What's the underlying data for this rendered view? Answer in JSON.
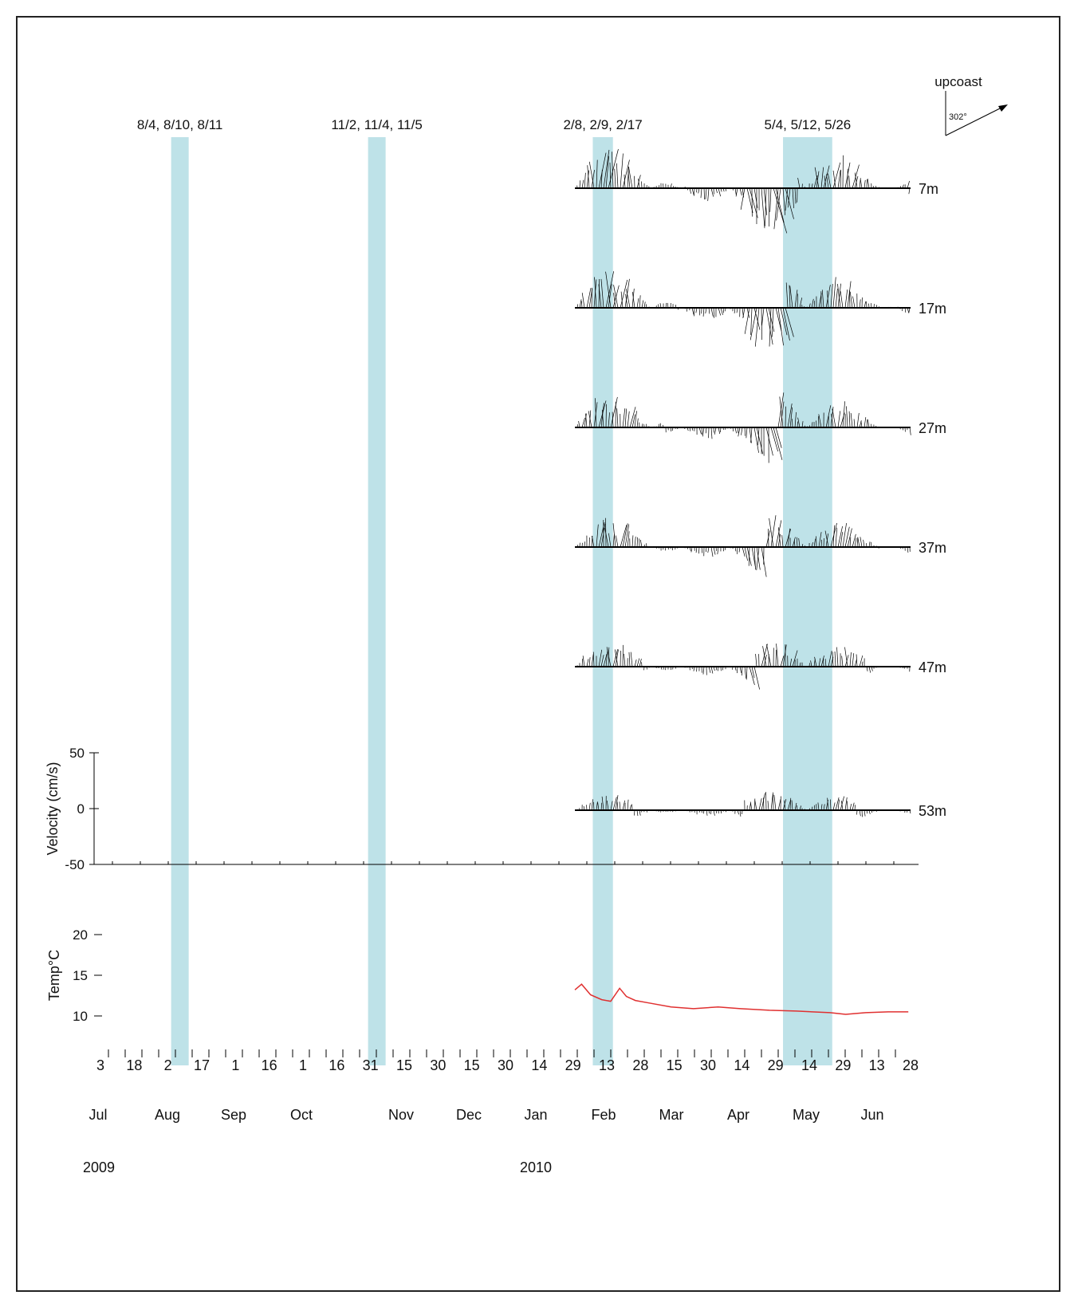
{
  "chart_data": {
    "type": "line",
    "orientation_legend": {
      "label": "upcoast",
      "angle_label": "302°"
    },
    "highlight_periods": [
      {
        "label": "8/4, 8/10, 8/11",
        "start": "2009-08-04",
        "end": "2009-08-11"
      },
      {
        "label": "11/2, 11/4, 11/5",
        "start": "2009-11-02",
        "end": "2009-11-05"
      },
      {
        "label": "2/8, 2/9, 2/17",
        "start": "2010-02-08",
        "end": "2010-02-17"
      },
      {
        "label": "5/4, 5/12, 5/26",
        "start": "2010-05-04",
        "end": "2010-05-26"
      }
    ],
    "depths": [
      "7m",
      "17m",
      "27m",
      "37m",
      "47m",
      "53m"
    ],
    "velocity_axis": {
      "ylabel": "Velocity (cm/s)",
      "ylim": [
        -50,
        50
      ],
      "ticks": [
        "50",
        "0",
        "-50"
      ]
    },
    "temperature_axis": {
      "ylabel": "Temp°C",
      "ylim": [
        10,
        20
      ],
      "ticks": [
        "20",
        "15",
        "10"
      ]
    },
    "temperature_series": {
      "name": "",
      "x": [
        "2010-01-31",
        "2010-02-03",
        "2010-02-07",
        "2010-02-12",
        "2010-02-16",
        "2010-02-20",
        "2010-02-23",
        "2010-02-27",
        "2010-03-05",
        "2010-03-15",
        "2010-03-25",
        "2010-04-05",
        "2010-04-15",
        "2010-04-28",
        "2010-05-10",
        "2010-05-25",
        "2010-06-01",
        "2010-06-10",
        "2010-06-20",
        "2010-06-29"
      ],
      "y": [
        13.2,
        13.9,
        12.6,
        12.0,
        11.8,
        13.4,
        12.4,
        11.9,
        11.6,
        11.1,
        10.9,
        11.1,
        10.9,
        10.7,
        10.6,
        10.4,
        10.2,
        10.4,
        10.5,
        10.5
      ]
    },
    "x_day_ticks": [
      "3",
      "18",
      "2",
      "17",
      "1",
      "16",
      "1",
      "16",
      "31",
      "15",
      "30",
      "15",
      "30",
      "14",
      "29",
      "13",
      "28",
      "15",
      "30",
      "14",
      "29",
      "14",
      "29",
      "13",
      "28"
    ],
    "x_month_labels": [
      "Jul",
      "Aug",
      "Sep",
      "Oct",
      "Nov",
      "Dec",
      "Jan",
      "Feb",
      "Mar",
      "Apr",
      "May",
      "Jun"
    ],
    "x_year_labels": [
      "2009",
      "2010"
    ],
    "xlim": [
      "2009-07-03",
      "2010-06-30"
    ],
    "colors": {
      "highlight": "#a8d8e0",
      "temperature": "#e03030",
      "vectors": "#000000"
    }
  }
}
